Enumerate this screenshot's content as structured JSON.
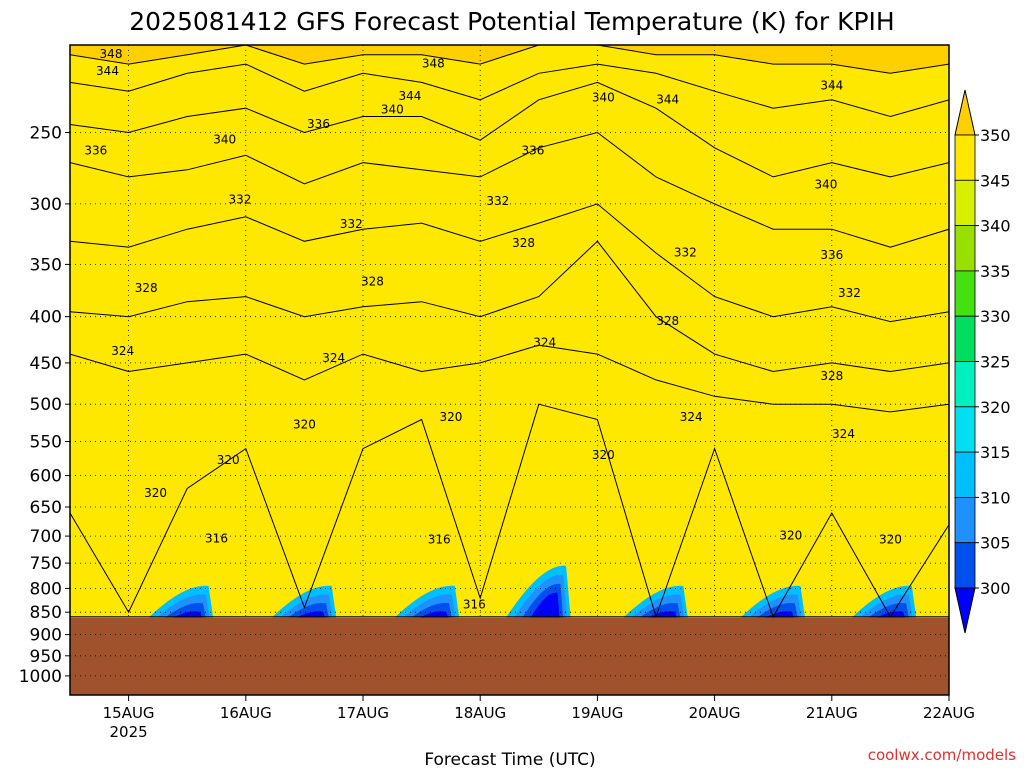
{
  "title": "2025081412 GFS Forecast Potential Temperature (K) for KPIH",
  "credit": {
    "text": "coolwx.com/models",
    "color": "#e03030"
  },
  "colors": {
    "ground": "#a0522d",
    "frame": "#000000",
    "grid": "#000000"
  },
  "chart_data": {
    "type": "heatmap",
    "title": "2025081412 GFS Forecast Potential Temperature (K) for KPIH",
    "xlabel": "Forecast Time (UTC)",
    "ylabel": "",
    "x_range_days": [
      14.5,
      22.0
    ],
    "x_ticks": [
      {
        "label": "15AUG",
        "sub": "2025",
        "day": 15
      },
      {
        "label": "16AUG",
        "sub": "",
        "day": 16
      },
      {
        "label": "17AUG",
        "sub": "",
        "day": 17
      },
      {
        "label": "18AUG",
        "sub": "",
        "day": 18
      },
      {
        "label": "19AUG",
        "sub": "",
        "day": 19
      },
      {
        "label": "20AUG",
        "sub": "",
        "day": 20
      },
      {
        "label": "21AUG",
        "sub": "",
        "day": 21
      },
      {
        "label": "22AUG",
        "sub": "",
        "day": 22
      }
    ],
    "y_scale": "log-pressure",
    "y_range_hPa": [
      1050,
      200
    ],
    "y_ticks": [
      250,
      300,
      350,
      400,
      450,
      500,
      550,
      600,
      650,
      700,
      750,
      800,
      850,
      900,
      950,
      1000
    ],
    "ground_pressure_hPa": 862,
    "colorbar": {
      "levels": [
        300,
        305,
        310,
        315,
        320,
        325,
        330,
        335,
        340,
        345,
        350
      ],
      "labels": [
        "300",
        "305",
        "310",
        "315",
        "320",
        "325",
        "330",
        "335",
        "340",
        "345",
        "350"
      ],
      "colors": [
        "#0000ff",
        "#0050ee",
        "#1e90ff",
        "#00bfff",
        "#00e0f0",
        "#00f0c0",
        "#00dd60",
        "#44e010",
        "#99e000",
        "#d8f000",
        "#ffe800",
        "#ffd000"
      ]
    },
    "isotherms": [
      {
        "theta": 316,
        "hPa": [
          860,
          860,
          860,
          860,
          860,
          860,
          860,
          860,
          860,
          860,
          860,
          860,
          860,
          860,
          860,
          860,
          860
        ]
      },
      {
        "theta": 320,
        "hPa": [
          660,
          850,
          620,
          560,
          840,
          560,
          520,
          820,
          500,
          520,
          860,
          560,
          860,
          660,
          860,
          680,
          860
        ]
      },
      {
        "theta": 324,
        "hPa": [
          440,
          460,
          450,
          440,
          470,
          440,
          460,
          450,
          430,
          440,
          470,
          490,
          500,
          500,
          510,
          500,
          520
        ]
      },
      {
        "theta": 328,
        "hPa": [
          395,
          400,
          385,
          380,
          400,
          390,
          385,
          400,
          380,
          330,
          400,
          440,
          460,
          450,
          460,
          450,
          460
        ]
      },
      {
        "theta": 332,
        "hPa": [
          330,
          335,
          320,
          310,
          330,
          320,
          315,
          330,
          315,
          300,
          340,
          380,
          400,
          390,
          405,
          395,
          400
        ]
      },
      {
        "theta": 336,
        "hPa": [
          270,
          280,
          275,
          265,
          285,
          270,
          275,
          280,
          260,
          250,
          280,
          300,
          320,
          320,
          335,
          320,
          325
        ]
      },
      {
        "theta": 340,
        "hPa": [
          245,
          250,
          240,
          235,
          250,
          240,
          240,
          255,
          230,
          220,
          235,
          260,
          280,
          270,
          280,
          270,
          270
        ]
      },
      {
        "theta": 344,
        "hPa": [
          220,
          225,
          215,
          210,
          225,
          215,
          220,
          230,
          215,
          210,
          215,
          225,
          235,
          230,
          240,
          230,
          230
        ]
      },
      {
        "theta": 348,
        "hPa": [
          205,
          210,
          205,
          200,
          210,
          205,
          205,
          210,
          200,
          200,
          205,
          205,
          210,
          210,
          215,
          210,
          210
        ]
      }
    ],
    "isotherm_days": [
      14.5,
      15.0,
      15.5,
      16.0,
      16.5,
      17.0,
      17.5,
      18.0,
      18.5,
      19.0,
      19.5,
      20.0,
      20.5,
      21.0,
      21.5,
      22.0,
      22.0
    ],
    "contour_labels": [
      {
        "text": "348",
        "day": 14.85,
        "hPa": 205
      },
      {
        "text": "344",
        "day": 14.82,
        "hPa": 214
      },
      {
        "text": "336",
        "day": 14.72,
        "hPa": 262
      },
      {
        "text": "340",
        "day": 15.82,
        "hPa": 255
      },
      {
        "text": "336",
        "day": 16.62,
        "hPa": 245
      },
      {
        "text": "348",
        "day": 17.6,
        "hPa": 210
      },
      {
        "text": "344",
        "day": 17.4,
        "hPa": 228
      },
      {
        "text": "340",
        "day": 17.25,
        "hPa": 236
      },
      {
        "text": "336",
        "day": 18.45,
        "hPa": 262
      },
      {
        "text": "340",
        "day": 19.05,
        "hPa": 229
      },
      {
        "text": "344",
        "day": 19.6,
        "hPa": 230
      },
      {
        "text": "344",
        "day": 21.0,
        "hPa": 222
      },
      {
        "text": "340",
        "day": 20.95,
        "hPa": 286
      },
      {
        "text": "336",
        "day": 21.0,
        "hPa": 342
      },
      {
        "text": "332",
        "day": 15.95,
        "hPa": 297
      },
      {
        "text": "332",
        "day": 16.9,
        "hPa": 316
      },
      {
        "text": "332",
        "day": 18.15,
        "hPa": 298
      },
      {
        "text": "328",
        "day": 18.37,
        "hPa": 332
      },
      {
        "text": "332",
        "day": 19.75,
        "hPa": 340
      },
      {
        "text": "332",
        "day": 21.15,
        "hPa": 377
      },
      {
        "text": "328",
        "day": 15.15,
        "hPa": 372
      },
      {
        "text": "328",
        "day": 17.08,
        "hPa": 366
      },
      {
        "text": "328",
        "day": 19.6,
        "hPa": 405
      },
      {
        "text": "328",
        "day": 21.0,
        "hPa": 466
      },
      {
        "text": "324",
        "day": 14.95,
        "hPa": 437
      },
      {
        "text": "324",
        "day": 16.75,
        "hPa": 445
      },
      {
        "text": "324",
        "day": 18.55,
        "hPa": 428
      },
      {
        "text": "324",
        "day": 19.8,
        "hPa": 517
      },
      {
        "text": "324",
        "day": 21.1,
        "hPa": 540
      },
      {
        "text": "320",
        "day": 16.5,
        "hPa": 527
      },
      {
        "text": "320",
        "day": 15.85,
        "hPa": 577
      },
      {
        "text": "320",
        "day": 15.23,
        "hPa": 628
      },
      {
        "text": "320",
        "day": 17.75,
        "hPa": 517
      },
      {
        "text": "320",
        "day": 19.05,
        "hPa": 570
      },
      {
        "text": "320",
        "day": 20.65,
        "hPa": 700
      },
      {
        "text": "320",
        "day": 21.5,
        "hPa": 707
      },
      {
        "text": "316",
        "day": 15.75,
        "hPa": 705
      },
      {
        "text": "316",
        "day": 17.65,
        "hPa": 707
      },
      {
        "text": "316",
        "day": 17.95,
        "hPa": 835
      }
    ]
  }
}
